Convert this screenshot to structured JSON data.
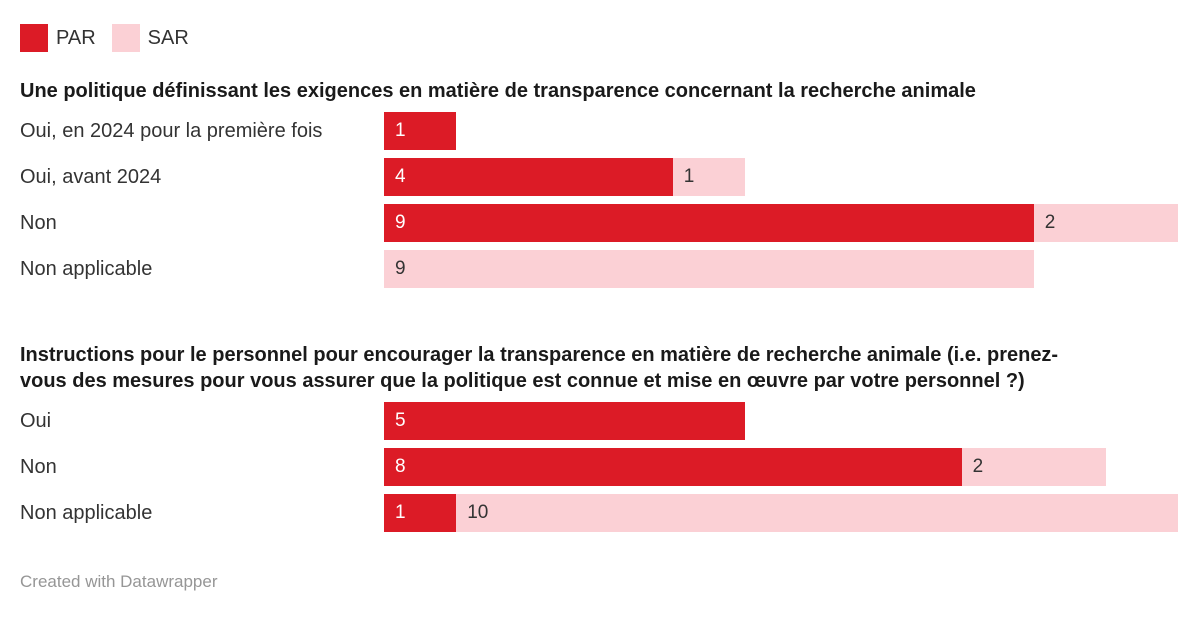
{
  "legend": {
    "items": [
      {
        "label": "PAR",
        "color": "#dc1b26"
      },
      {
        "label": "SAR",
        "color": "#fbd0d5"
      }
    ]
  },
  "footer": {
    "text": "Created with Datawrapper"
  },
  "colors": {
    "par": "#dc1b26",
    "sar": "#fbd0d5",
    "text": "#333333",
    "title": "#1a1a1a",
    "value_on_par": "#ffffff",
    "value_on_sar": "#333333",
    "footer": "#969696"
  },
  "chart_data": {
    "type": "bar",
    "orientation": "horizontal",
    "stacked": true,
    "grid": false,
    "legend_position": "top-left",
    "x_max_units": 11,
    "series_names": [
      "PAR",
      "SAR"
    ],
    "sections": [
      {
        "title": "Une politique définissant les exigences en matière de transparence concernant la recherche animale",
        "title_lines": [
          "Une politique définissant les exigences en matière de transparence concernant la recherche animale"
        ],
        "categories": [
          "Oui, en 2024 pour la première fois",
          "Oui, avant 2024",
          "Non",
          "Non applicable"
        ],
        "series": [
          {
            "name": "PAR",
            "values": [
              1,
              4,
              9,
              0
            ]
          },
          {
            "name": "SAR",
            "values": [
              0,
              1,
              2,
              9
            ]
          }
        ]
      },
      {
        "title": "Instructions pour le personnel pour encourager la transparence en matière de recherche animale (i.e. prenez-vous des mesures pour vous assurer que la politique est connue et mise en œuvre par votre personnel ?)",
        "title_lines": [
          "Instructions pour le personnel pour encourager la transparence en matière de recherche animale (i.e. prenez-",
          "vous des mesures pour vous assurer que la politique est connue et mise en œuvre par votre personnel ?)"
        ],
        "categories": [
          "Oui",
          "Non",
          "Non applicable"
        ],
        "series": [
          {
            "name": "PAR",
            "values": [
              5,
              8,
              1
            ]
          },
          {
            "name": "SAR",
            "values": [
              0,
              2,
              10
            ]
          }
        ]
      }
    ]
  }
}
